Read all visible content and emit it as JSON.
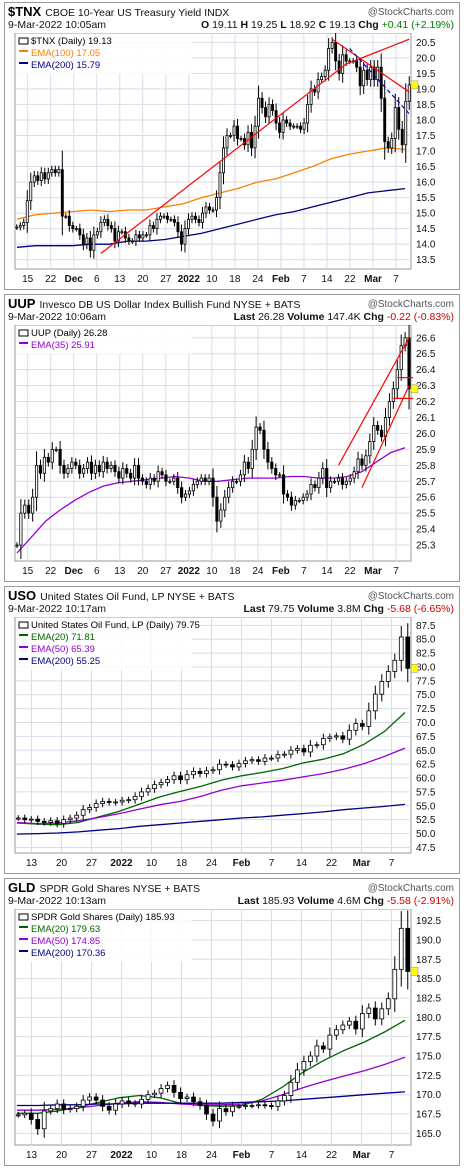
{
  "brand": "@StockCharts.com",
  "chart_data": [
    {
      "type": "candlestick",
      "symbol": "$TNX",
      "name": "CBOE 10-Year US Treasury Yield",
      "exchange": "INDX",
      "date_time": "9-Mar-2022 10:05am",
      "summary": {
        "O": "19.11",
        "H": "19.25",
        "L": "18.92",
        "C": "19.13",
        "Chg": "+0.41 (+2.19%)"
      },
      "legend": [
        {
          "label": "$TNX (Daily) 19.13",
          "color": "#000000"
        },
        {
          "label": "EMA(100) 17.05",
          "color": "#ff7f00"
        },
        {
          "label": "EMA(200) 15.79",
          "color": "#000080"
        }
      ],
      "x_ticks": [
        "15",
        "22",
        "Dec",
        "6",
        "13",
        "20",
        "27",
        "2022",
        "10",
        "18",
        "24",
        "Feb",
        "7",
        "14",
        "22",
        "Mar",
        "7"
      ],
      "y_ticks": [
        20.5,
        20.0,
        19.5,
        19.0,
        18.5,
        18.0,
        17.5,
        17.0,
        16.5,
        16.0,
        15.5,
        15.0,
        14.5,
        14.0,
        13.5
      ],
      "ylim": [
        13.2,
        20.8
      ],
      "closes": [
        14.55,
        14.6,
        14.7,
        15.4,
        16.0,
        16.2,
        16.05,
        16.3,
        16.1,
        16.3,
        16.4,
        16.3,
        16.4,
        14.9,
        14.9,
        14.6,
        14.5,
        14.5,
        14.3,
        14.0,
        14.2,
        13.8,
        14.3,
        14.4,
        14.7,
        14.8,
        14.6,
        14.5,
        14.1,
        14.4,
        14.4,
        14.2,
        14.1,
        14.1,
        14.3,
        14.2,
        14.3,
        14.3,
        14.6,
        14.5,
        14.8,
        14.9,
        14.9,
        14.8,
        14.8,
        14.7,
        14.4,
        14.0,
        14.5,
        14.8,
        14.9,
        14.8,
        14.7,
        15.0,
        15.2,
        15.1,
        15.1,
        15.5,
        16.3,
        17.1,
        17.5,
        17.5,
        17.8,
        17.4,
        17.4,
        17.2,
        17.6,
        17.1,
        17.8,
        18.7,
        18.4,
        18.1,
        18.5,
        18.3,
        17.9,
        17.6,
        18.0,
        17.9,
        17.8,
        17.8,
        17.8,
        17.7,
        17.9,
        18.5,
        19.0,
        18.9,
        19.3,
        19.4,
        19.6,
        20.3,
        20.5,
        19.9,
        19.5,
        20.1,
        19.9,
        19.9,
        19.9,
        19.7,
        19.1,
        19.6,
        19.3,
        19.7,
        19.3,
        19.7,
        18.7,
        17.3,
        17.1,
        17.4,
        18.4,
        17.7,
        17.2,
        18.6,
        19.13
      ],
      "ema_series": [
        {
          "name": "EMA(100)",
          "color": "#ff7f00",
          "values": [
            14.8,
            14.95,
            15.0,
            15.05,
            15.1,
            15.05,
            15.1,
            15.1,
            15.2,
            15.3,
            15.5,
            15.65,
            15.8,
            16.0,
            16.1,
            16.3,
            16.5,
            16.75,
            16.9,
            17.0,
            17.1,
            17.05
          ]
        },
        {
          "name": "EMA(200)",
          "color": "#000080",
          "values": [
            13.9,
            13.95,
            13.95,
            13.95,
            14.0,
            14.0,
            14.1,
            14.1,
            14.15,
            14.25,
            14.35,
            14.5,
            14.65,
            14.8,
            14.95,
            15.05,
            15.2,
            15.35,
            15.5,
            15.65,
            15.72,
            15.79
          ]
        }
      ],
      "trendlines": [
        {
          "color": "#ff0000",
          "style": "solid",
          "points": [
            [
              24,
              13.7
            ],
            [
              94,
              19.8
            ]
          ]
        },
        {
          "color": "#ff0000",
          "style": "solid",
          "points": [
            [
              94,
              19.8
            ],
            [
              112,
              20.6
            ]
          ]
        },
        {
          "color": "#ff0000",
          "style": "solid",
          "points": [
            [
              90,
              20.6
            ],
            [
              112,
              18.9
            ]
          ]
        },
        {
          "color": "#0000cc",
          "style": "dashed",
          "points": [
            [
              95,
              20.3
            ],
            [
              112,
              18.2
            ]
          ]
        }
      ]
    },
    {
      "type": "candlestick",
      "symbol": "UUP",
      "name": "Invesco DB US Dollar Index Bullish Fund",
      "exchange": "NYSE + BATS",
      "date_time": "9-Mar-2022 10:06am",
      "summary": {
        "Last": "26.28",
        "Volume": "147.4K",
        "Chg": "-0.22 (-0.83%)"
      },
      "legend": [
        {
          "label": "UUP (Daily) 26.28",
          "color": "#000000"
        },
        {
          "label": "EMA(35) 25.91",
          "color": "#9400d3"
        }
      ],
      "x_ticks": [
        "15",
        "22",
        "Dec",
        "6",
        "13",
        "20",
        "27",
        "2022",
        "10",
        "18",
        "24",
        "Feb",
        "7",
        "14",
        "22",
        "Mar",
        "7"
      ],
      "y_ticks": [
        26.6,
        26.5,
        26.4,
        26.3,
        26.2,
        26.1,
        26.0,
        25.9,
        25.8,
        25.7,
        25.6,
        25.5,
        25.4,
        25.3
      ],
      "ylim": [
        25.2,
        26.68
      ],
      "closes": [
        25.3,
        25.5,
        25.55,
        25.5,
        25.6,
        25.8,
        25.75,
        25.85,
        25.82,
        25.9,
        25.9,
        25.8,
        25.75,
        25.78,
        25.82,
        25.8,
        25.75,
        25.78,
        25.82,
        25.75,
        25.8,
        25.76,
        25.82,
        25.78,
        25.8,
        25.76,
        25.72,
        25.78,
        25.75,
        25.72,
        25.8,
        25.72,
        25.7,
        25.68,
        25.72,
        25.7,
        25.76,
        25.74,
        25.7,
        25.7,
        25.72,
        25.66,
        25.6,
        25.62,
        25.64,
        25.68,
        25.7,
        25.72,
        25.7,
        25.72,
        25.6,
        25.45,
        25.52,
        25.6,
        25.66,
        25.7,
        25.7,
        25.74,
        25.82,
        25.78,
        25.9,
        26.04,
        26.02,
        25.9,
        25.82,
        25.78,
        25.74,
        25.74,
        25.62,
        25.6,
        25.55,
        25.58,
        25.58,
        25.6,
        25.62,
        25.68,
        25.66,
        25.72,
        25.78,
        25.66,
        25.7,
        25.7,
        25.72,
        25.68,
        25.7,
        25.72,
        25.76,
        25.84,
        25.8,
        25.86,
        25.95,
        26.05,
        26.02,
        25.98,
        26.1,
        26.2,
        26.28,
        26.4,
        26.55,
        26.6,
        26.28
      ],
      "ema_series": [
        {
          "name": "EMA(35)",
          "color": "#9400d3",
          "values": [
            25.25,
            25.35,
            25.45,
            25.52,
            25.58,
            25.63,
            25.67,
            25.69,
            25.7,
            25.71,
            25.72,
            25.73,
            25.72,
            25.7,
            25.7,
            25.71,
            25.72,
            25.72,
            25.72,
            25.73,
            25.73,
            25.72,
            25.72,
            25.73,
            25.76,
            25.82,
            25.88,
            25.91
          ]
        }
      ],
      "trendlines": [
        {
          "color": "#ff0000",
          "style": "solid",
          "points": [
            [
              82,
              25.8
            ],
            [
              100,
              26.6
            ]
          ]
        },
        {
          "color": "#ff0000",
          "style": "solid",
          "points": [
            [
              88,
              25.66
            ],
            [
              100,
              26.3
            ]
          ]
        },
        {
          "color": "#ff0000",
          "style": "solid",
          "points": [
            [
              97,
              26.35
            ],
            [
              101,
              26.35
            ]
          ]
        },
        {
          "color": "#ff0000",
          "style": "solid",
          "points": [
            [
              96,
              26.22
            ],
            [
              101,
              26.22
            ]
          ]
        }
      ]
    },
    {
      "type": "candlestick",
      "symbol": "USO",
      "name": "United States Oil Fund, LP",
      "exchange": "NYSE + BATS",
      "date_time": "9-Mar-2022 10:17am",
      "summary": {
        "Last": "79.75",
        "Volume": "3.8M",
        "Chg": "-5.68 (-6.65%)"
      },
      "legend": [
        {
          "label": "United States Oil Fund, LP (Daily) 79.75",
          "color": "#000000"
        },
        {
          "label": "EMA(20) 71.81",
          "color": "#006400"
        },
        {
          "label": "EMA(50) 65.39",
          "color": "#9400d3"
        },
        {
          "label": "EMA(200) 55.25",
          "color": "#000080"
        }
      ],
      "x_ticks": [
        "13",
        "20",
        "27",
        "2022",
        "10",
        "18",
        "24",
        "Feb",
        "7",
        "14",
        "22",
        "Mar",
        "7"
      ],
      "y_ticks": [
        87.5,
        85.0,
        82.5,
        80.0,
        77.5,
        75.0,
        72.5,
        70.0,
        67.5,
        65.0,
        62.5,
        60.0,
        57.5,
        55.0,
        52.5,
        50.0,
        47.5
      ],
      "ylim": [
        46.5,
        89.0
      ],
      "closes": [
        52.8,
        52.5,
        52.6,
        52.2,
        52.0,
        52.3,
        51.8,
        52.5,
        52.8,
        53.3,
        54.3,
        54.7,
        55.4,
        55.8,
        55.6,
        55.7,
        56.0,
        56.1,
        56.7,
        57.5,
        58.1,
        58.8,
        59.2,
        59.7,
        60.4,
        59.7,
        60.6,
        61.2,
        60.8,
        61.3,
        61.5,
        62.5,
        62.4,
        62.0,
        62.6,
        63.1,
        63.3,
        63.0,
        63.6,
        63.6,
        64.2,
        64.3,
        65.0,
        65.3,
        64.7,
        65.9,
        66.0,
        67.1,
        67.4,
        67.6,
        67.0,
        68.6,
        69.8,
        69.3,
        72.1,
        75.1,
        77.4,
        79.2,
        81.2,
        85.4,
        79.75
      ],
      "ema_series": [
        {
          "name": "EMA(20)",
          "color": "#006400",
          "values": [
            51.9,
            51.7,
            51.6,
            52.0,
            53.0,
            54.0,
            55.3,
            56.6,
            57.6,
            58.5,
            59.6,
            60.4,
            61.0,
            61.7,
            62.7,
            63.4,
            64.4,
            66.1,
            68.4,
            71.81
          ]
        },
        {
          "name": "EMA(50)",
          "color": "#9400d3",
          "values": [
            52.0,
            51.8,
            51.9,
            52.3,
            52.9,
            53.6,
            54.4,
            55.2,
            55.8,
            56.7,
            57.8,
            58.6,
            59.1,
            59.6,
            60.2,
            60.8,
            61.6,
            62.6,
            63.9,
            65.39
          ]
        },
        {
          "name": "EMA(200)",
          "color": "#000080",
          "values": [
            49.9,
            50.0,
            50.1,
            50.3,
            50.6,
            50.9,
            51.3,
            51.6,
            51.9,
            52.2,
            52.5,
            52.8,
            53.0,
            53.3,
            53.6,
            53.9,
            54.3,
            54.6,
            54.9,
            55.25
          ]
        }
      ],
      "trendlines": []
    },
    {
      "type": "candlestick",
      "symbol": "GLD",
      "name": "SPDR Gold Shares",
      "exchange": "NYSE + BATS",
      "date_time": "9-Mar-2022 10:13am",
      "summary": {
        "Last": "185.93",
        "Volume": "4.6M",
        "Chg": "-5.58 (-2.91%)"
      },
      "legend": [
        {
          "label": "SPDR Gold Shares (Daily) 185.93",
          "color": "#000000"
        },
        {
          "label": "EMA(20) 179.63",
          "color": "#006400"
        },
        {
          "label": "EMA(50) 174.85",
          "color": "#9400d3"
        },
        {
          "label": "EMA(200) 170.36",
          "color": "#000080"
        }
      ],
      "x_ticks": [
        "13",
        "20",
        "27",
        "2022",
        "10",
        "18",
        "24",
        "Feb",
        "7",
        "14",
        "22",
        "Mar",
        "7"
      ],
      "y_ticks": [
        192.5,
        190.0,
        187.5,
        185.0,
        182.5,
        180.0,
        177.5,
        175.0,
        172.5,
        170.0,
        167.5,
        165.0
      ],
      "ylim": [
        163.5,
        194.0
      ],
      "closes": [
        167.4,
        167.6,
        166.8,
        165.6,
        167.9,
        168.2,
        168.8,
        168.1,
        168.2,
        168.5,
        169.3,
        169.7,
        169.3,
        168.5,
        168.0,
        168.8,
        169.2,
        168.9,
        168.8,
        169.4,
        170.0,
        170.2,
        170.8,
        171.2,
        170.3,
        169.5,
        169.7,
        169.1,
        168.6,
        167.5,
        166.6,
        168.2,
        167.8,
        168.5,
        168.5,
        168.6,
        168.6,
        168.7,
        168.6,
        168.5,
        169.2,
        169.9,
        171.6,
        173.2,
        174.3,
        175.0,
        176.3,
        175.9,
        177.7,
        178.4,
        179.0,
        179.5,
        178.5,
        180.5,
        181.2,
        179.8,
        181.1,
        182.4,
        186.2,
        191.5,
        185.93
      ],
      "ema_series": [
        {
          "name": "EMA(20)",
          "color": "#006400",
          "values": [
            167.6,
            167.6,
            167.9,
            168.4,
            169.0,
            169.6,
            169.9,
            169.6,
            168.9,
            168.6,
            168.5,
            168.6,
            169.4,
            171.0,
            172.9,
            174.4,
            175.7,
            176.8,
            178.1,
            179.63
          ]
        },
        {
          "name": "EMA(50)",
          "color": "#9400d3",
          "values": [
            168.0,
            168.0,
            168.1,
            168.3,
            168.6,
            168.9,
            169.1,
            169.0,
            168.8,
            168.7,
            168.7,
            168.8,
            169.2,
            170.0,
            170.9,
            171.7,
            172.4,
            173.1,
            173.9,
            174.85
          ]
        },
        {
          "name": "EMA(200)",
          "color": "#000080",
          "values": [
            168.6,
            168.6,
            168.7,
            168.7,
            168.8,
            168.8,
            168.9,
            168.9,
            168.9,
            168.9,
            168.9,
            169.0,
            169.1,
            169.2,
            169.4,
            169.6,
            169.8,
            170.0,
            170.2,
            170.36
          ]
        }
      ],
      "trendlines": []
    }
  ]
}
